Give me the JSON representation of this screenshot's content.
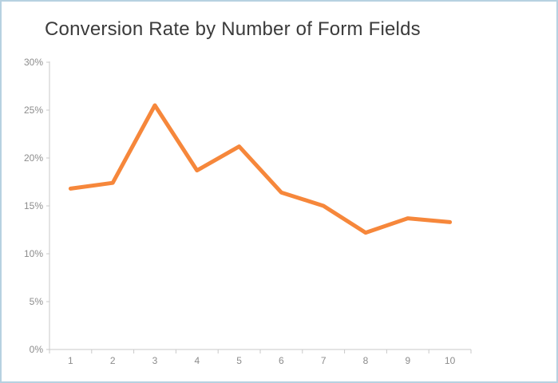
{
  "page": {
    "title": "Conversion Rate by Number of Form Fields"
  },
  "colors": {
    "line": "#F6873B",
    "axis": "#C9C9C9",
    "tick_label": "#8C8C8C",
    "title_text": "#3B3B3B",
    "frame_border": "#B7D1E1",
    "background": "#FFFFFF"
  },
  "chart_data": {
    "type": "line",
    "title": "Conversion Rate by Number of Form Fields",
    "xlabel": "",
    "ylabel": "",
    "x": [
      1,
      2,
      3,
      4,
      5,
      6,
      7,
      8,
      9,
      10
    ],
    "values": [
      16.8,
      17.4,
      25.5,
      18.7,
      21.2,
      16.4,
      15.0,
      12.2,
      13.7,
      13.3
    ],
    "x_tick_labels": [
      "1",
      "2",
      "3",
      "4",
      "5",
      "6",
      "7",
      "8",
      "9",
      "10"
    ],
    "y_tick_labels": [
      "0%",
      "5%",
      "10%",
      "15%",
      "20%",
      "25%",
      "30%"
    ],
    "y_ticks": [
      0,
      5,
      10,
      15,
      20,
      25,
      30
    ],
    "ylim": [
      0,
      30
    ],
    "grid": false,
    "legend": false,
    "units": "percent"
  }
}
